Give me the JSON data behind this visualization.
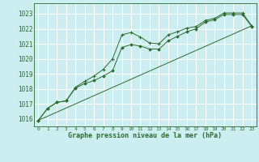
{
  "title": "Graphe pression niveau de la mer (hPa)",
  "bg_color": "#cceef0",
  "grid_color": "#ffffff",
  "line_color": "#2d6a2d",
  "xlim": [
    -0.5,
    23.5
  ],
  "ylim": [
    1015.5,
    1023.7
  ],
  "yticks": [
    1016,
    1017,
    1018,
    1019,
    1020,
    1021,
    1022,
    1023
  ],
  "xticks": [
    0,
    1,
    2,
    3,
    4,
    5,
    6,
    7,
    8,
    9,
    10,
    11,
    12,
    13,
    14,
    15,
    16,
    17,
    18,
    19,
    20,
    21,
    22,
    23
  ],
  "series1_x": [
    0,
    1,
    2,
    3,
    4,
    5,
    6,
    7,
    8,
    9,
    10,
    11,
    12,
    13,
    14,
    15,
    16,
    17,
    18,
    19,
    20,
    21,
    22,
    23
  ],
  "series1_y": [
    1015.9,
    1016.7,
    1017.1,
    1017.2,
    1018.1,
    1018.5,
    1018.85,
    1019.3,
    1020.0,
    1021.6,
    1021.75,
    1021.45,
    1021.05,
    1021.0,
    1021.6,
    1021.8,
    1022.05,
    1022.15,
    1022.55,
    1022.7,
    1023.05,
    1023.05,
    1023.05,
    1022.2
  ],
  "series2_x": [
    0,
    1,
    2,
    3,
    4,
    5,
    6,
    7,
    8,
    9,
    10,
    11,
    12,
    13,
    14,
    15,
    16,
    17,
    18,
    19,
    20,
    21,
    22,
    23
  ],
  "series2_y": [
    1015.9,
    1016.7,
    1017.1,
    1017.2,
    1018.05,
    1018.35,
    1018.55,
    1018.85,
    1019.2,
    1020.75,
    1020.95,
    1020.85,
    1020.65,
    1020.65,
    1021.2,
    1021.5,
    1021.8,
    1022.0,
    1022.45,
    1022.6,
    1022.95,
    1022.95,
    1022.95,
    1022.15
  ],
  "series3_x": [
    0,
    23
  ],
  "series3_y": [
    1015.9,
    1022.2
  ]
}
